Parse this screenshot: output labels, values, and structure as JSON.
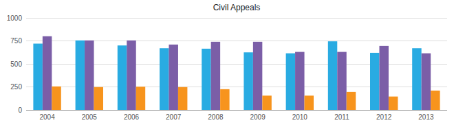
{
  "chart_data": {
    "type": "bar",
    "title": "Civil Appeals",
    "categories": [
      "2004",
      "2005",
      "2006",
      "2007",
      "2008",
      "2009",
      "2010",
      "2011",
      "2012",
      "2013"
    ],
    "series": [
      {
        "color": "#29abe2",
        "values": [
          720,
          755,
          700,
          670,
          665,
          625,
          615,
          745,
          620,
          670
        ]
      },
      {
        "color": "#7b5ea7",
        "values": [
          800,
          755,
          755,
          710,
          740,
          740,
          630,
          630,
          695,
          615
        ]
      },
      {
        "color": "#f7941d",
        "values": [
          255,
          248,
          252,
          248,
          225,
          155,
          155,
          195,
          145,
          210
        ]
      }
    ],
    "ylim": [
      0,
      1000
    ],
    "yticks": [
      0,
      250,
      500,
      750,
      1000
    ],
    "grid": true
  }
}
